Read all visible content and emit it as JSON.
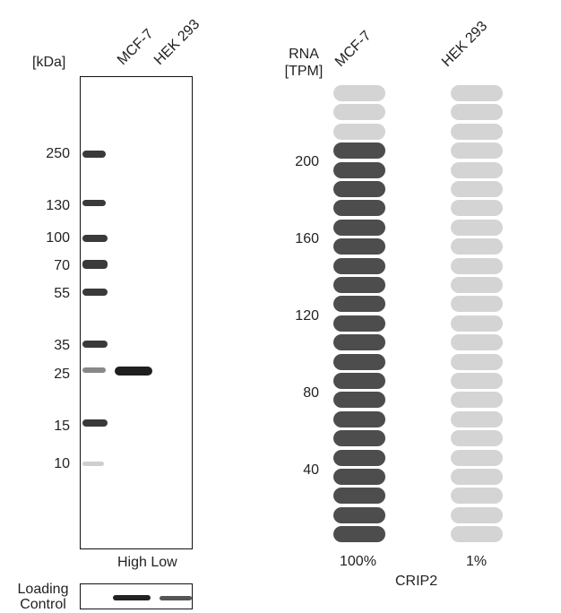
{
  "western_blot": {
    "kda_label": "[kDa]",
    "lanes": [
      "MCF-7",
      "HEK 293"
    ],
    "markers": [
      "250",
      "130",
      "100",
      "70",
      "55",
      "35",
      "25",
      "15",
      "10"
    ],
    "expression_label": "High Low",
    "loading_control_label": "Loading Control"
  },
  "rna": {
    "axis_label_line1": "RNA",
    "axis_label_line2": "[TPM]",
    "lanes": [
      "MCF-7",
      "HEK 293"
    ],
    "ticks": [
      "200",
      "160",
      "120",
      "80",
      "40"
    ],
    "percentages": [
      "100%",
      "1%"
    ],
    "gene": "CRIP2"
  },
  "chart_data": {
    "type": "bar",
    "title": "",
    "xlabel": "",
    "ylabel": "RNA [TPM]",
    "categories": [
      "MCF-7",
      "HEK 293"
    ],
    "series": [
      {
        "values": [
          100,
          1
        ]
      }
    ],
    "ylim": [
      0,
      240
    ],
    "relative_percent": [
      100,
      1
    ],
    "gene": "CRIP2",
    "ytick_labels": [
      "40",
      "80",
      "120",
      "160",
      "200"
    ]
  },
  "colors": {
    "pill_high": "#4d4d4d",
    "pill_low": "#d4d4d4",
    "marker": "#3a3a3a",
    "band": "#1f1f1f"
  }
}
